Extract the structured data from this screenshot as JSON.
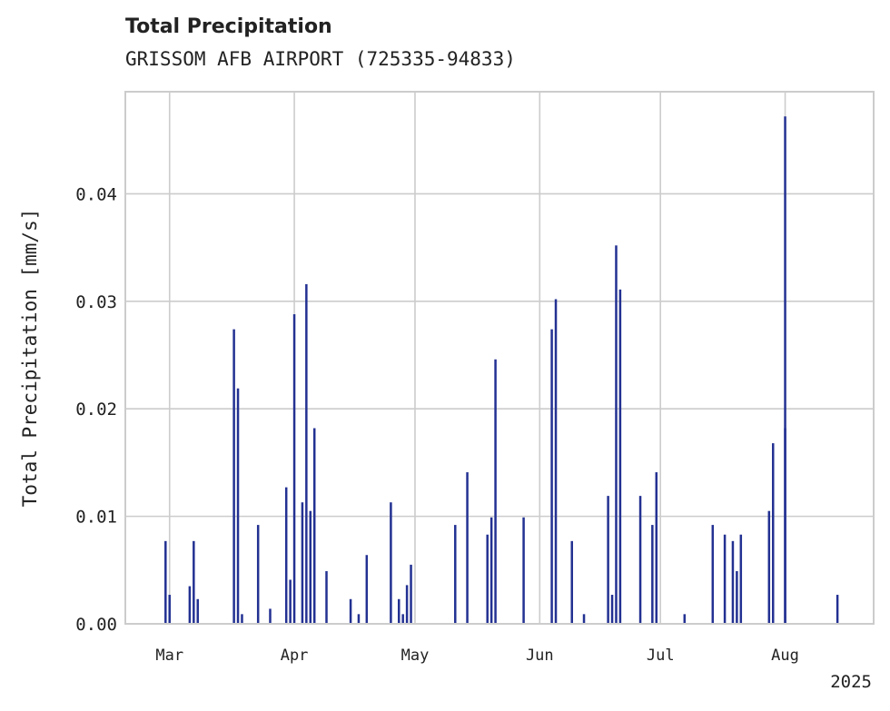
{
  "chart_data": {
    "type": "bar",
    "title": "Total Precipitation",
    "subtitle": "GRISSOM AFB AIRPORT (725335-94833)",
    "xlabel": "",
    "ylabel": "Total Precipitation [mm/s]",
    "xlim": [
      "2025-02-18",
      "2025-08-23"
    ],
    "ylim": [
      0,
      0.0495
    ],
    "grid": true,
    "color": "#233192",
    "x_ticks": [
      {
        "date": "2025-03-01",
        "label": "Mar"
      },
      {
        "date": "2025-04-01",
        "label": "Apr"
      },
      {
        "date": "2025-05-01",
        "label": "May"
      },
      {
        "date": "2025-06-01",
        "label": "Jun"
      },
      {
        "date": "2025-07-01",
        "label": "Jul"
      },
      {
        "date": "2025-08-01",
        "label": "Aug"
      }
    ],
    "x_offset_label": "2025",
    "y_ticks": [
      {
        "value": 0.0,
        "label": "0.00"
      },
      {
        "value": 0.01,
        "label": "0.01"
      },
      {
        "value": 0.02,
        "label": "0.02"
      },
      {
        "value": 0.03,
        "label": "0.03"
      },
      {
        "value": 0.04,
        "label": "0.04"
      }
    ],
    "series": [
      {
        "x": [
          "2025-02-28",
          "2025-03-01",
          "2025-03-06",
          "2025-03-07",
          "2025-03-08",
          "2025-03-17",
          "2025-03-18",
          "2025-03-19",
          "2025-03-23",
          "2025-03-26",
          "2025-03-30",
          "2025-03-31",
          "2025-04-01",
          "2025-04-03",
          "2025-04-04",
          "2025-04-05",
          "2025-04-06",
          "2025-04-09",
          "2025-04-15",
          "2025-04-17",
          "2025-04-19",
          "2025-04-25",
          "2025-04-27",
          "2025-04-28",
          "2025-04-29",
          "2025-04-30",
          "2025-05-11",
          "2025-05-14",
          "2025-05-19",
          "2025-05-20",
          "2025-05-21",
          "2025-05-28",
          "2025-06-04",
          "2025-06-05",
          "2025-06-09",
          "2025-06-12",
          "2025-06-18",
          "2025-06-19",
          "2025-06-20",
          "2025-06-21",
          "2025-06-26",
          "2025-06-29",
          "2025-06-30",
          "2025-07-07",
          "2025-07-14",
          "2025-07-17",
          "2025-07-19",
          "2025-07-20",
          "2025-07-21",
          "2025-07-28",
          "2025-07-29",
          "2025-08-01",
          "2025-08-01",
          "2025-08-14"
        ],
        "values": [
          0.0077,
          0.0027,
          0.0035,
          0.0077,
          0.0023,
          0.0274,
          0.0219,
          0.0009,
          0.0092,
          0.0014,
          0.0127,
          0.0041,
          0.0288,
          0.0113,
          0.0316,
          0.0105,
          0.0182,
          0.0049,
          0.0023,
          0.0009,
          0.0064,
          0.0113,
          0.0023,
          0.0009,
          0.0036,
          0.0055,
          0.0092,
          0.0141,
          0.0083,
          0.0099,
          0.0246,
          0.0099,
          0.0274,
          0.0302,
          0.0077,
          0.0009,
          0.0119,
          0.0027,
          0.0352,
          0.0311,
          0.0119,
          0.0092,
          0.0141,
          0.0009,
          0.0092,
          0.0083,
          0.0077,
          0.0049,
          0.0083,
          0.0105,
          0.0168,
          0.0182,
          0.0472,
          0.0027
        ]
      }
    ]
  }
}
